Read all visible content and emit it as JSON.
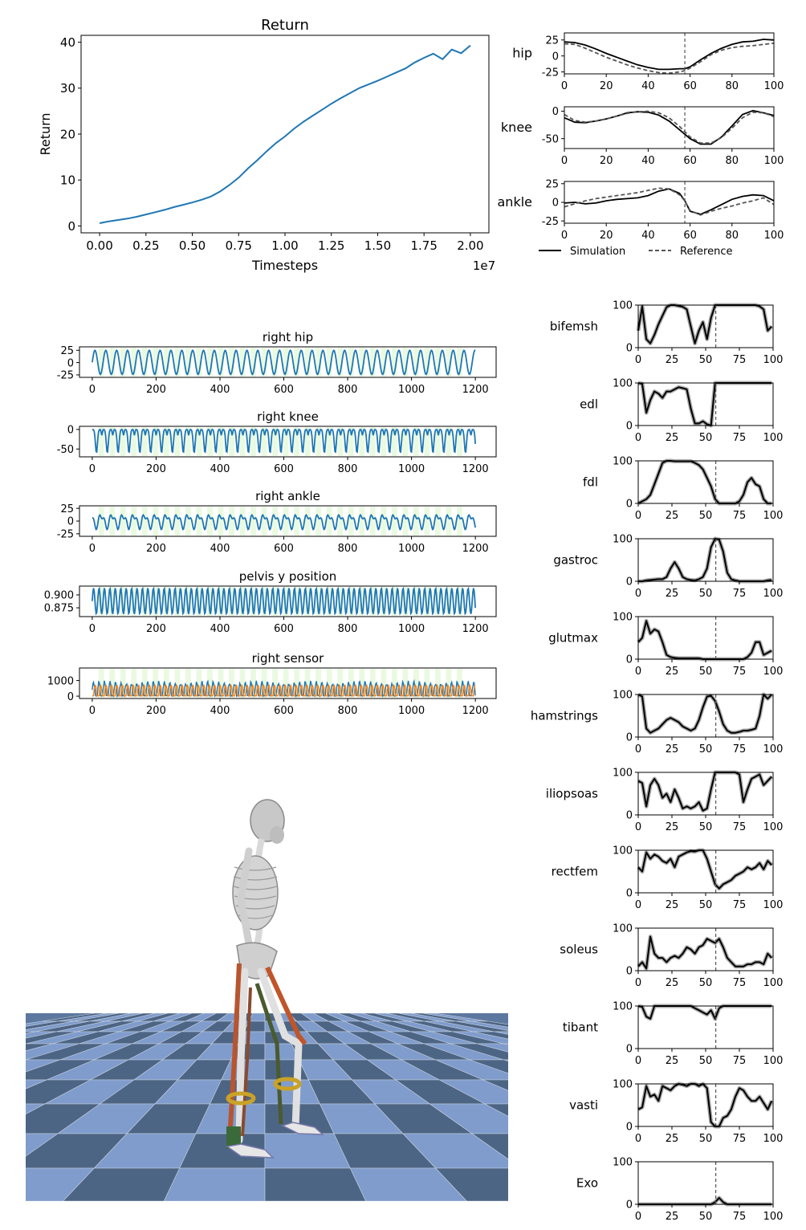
{
  "colors": {
    "blue": "#1f77b4",
    "orange": "#ff7f0e",
    "black": "#000000",
    "ref": "#555555",
    "band": "#aaaaaa",
    "stance": "#d7f5c8",
    "floor_dark": "#4d6585",
    "floor_light": "#7f9ccc",
    "floor_line": "#c9d1dc"
  },
  "chart_data": [
    {
      "id": "return",
      "type": "line",
      "title": "Return",
      "xlabel": "Timesteps",
      "ylabel": "Return",
      "x_multiplier_label": "1e7",
      "xlim": [
        -0.1,
        2.1
      ],
      "ylim": [
        -1.5,
        41.5
      ],
      "xticks": [
        0.0,
        0.25,
        0.5,
        0.75,
        1.0,
        1.25,
        1.5,
        1.75,
        2.0
      ],
      "xtick_labels": [
        "0.00",
        "0.25",
        "0.50",
        "0.75",
        "1.00",
        "1.25",
        "1.50",
        "1.75",
        "2.00"
      ],
      "yticks": [
        0,
        10,
        20,
        30,
        40
      ],
      "series": [
        {
          "color": "#1f77b4",
          "x": [
            0.0,
            0.05,
            0.1,
            0.15,
            0.2,
            0.25,
            0.3,
            0.35,
            0.4,
            0.45,
            0.5,
            0.55,
            0.6,
            0.65,
            0.7,
            0.75,
            0.8,
            0.85,
            0.9,
            0.95,
            1.0,
            1.05,
            1.1,
            1.15,
            1.2,
            1.25,
            1.3,
            1.35,
            1.4,
            1.45,
            1.5,
            1.55,
            1.6,
            1.65,
            1.7,
            1.75,
            1.8,
            1.85,
            1.9,
            1.95,
            2.0
          ],
          "y": [
            0.6,
            1.0,
            1.3,
            1.6,
            2.0,
            2.5,
            3.0,
            3.5,
            4.1,
            4.6,
            5.1,
            5.7,
            6.4,
            7.5,
            8.9,
            10.5,
            12.5,
            14.3,
            16.2,
            18.0,
            19.5,
            21.2,
            22.7,
            24.0,
            25.3,
            26.6,
            27.8,
            28.9,
            30.0,
            30.8,
            31.6,
            32.5,
            33.4,
            34.3,
            35.6,
            36.6,
            37.5,
            36.3,
            38.4,
            37.6,
            39.3
          ]
        }
      ]
    },
    {
      "id": "hip",
      "type": "line",
      "ylabel": "hip",
      "xlim": [
        0,
        100
      ],
      "ylim": [
        -28,
        36
      ],
      "xticks": [
        0,
        20,
        40,
        60,
        80,
        100
      ],
      "yticks": [
        -25,
        0,
        25
      ],
      "vline_x": 57.5,
      "series": [
        {
          "name": "Simulation",
          "style": "solid",
          "x": [
            0,
            5,
            10,
            15,
            20,
            25,
            30,
            35,
            40,
            45,
            50,
            55,
            57.5,
            60,
            65,
            70,
            75,
            80,
            85,
            90,
            95,
            100
          ],
          "y": [
            22,
            21,
            17,
            11,
            4,
            -2,
            -8,
            -14,
            -18,
            -21,
            -21,
            -20,
            -20,
            -17,
            -6,
            4,
            12,
            18,
            22,
            23,
            26,
            25
          ]
        },
        {
          "name": "Reference",
          "style": "dashed",
          "x": [
            0,
            5,
            10,
            15,
            20,
            25,
            30,
            35,
            40,
            45,
            50,
            55,
            57.5,
            60,
            65,
            70,
            75,
            80,
            85,
            90,
            95,
            100
          ],
          "y": [
            19,
            18,
            12,
            5,
            -2,
            -8,
            -14,
            -19,
            -23,
            -26,
            -27,
            -25,
            -23,
            -19,
            -9,
            2,
            9,
            13,
            15,
            16,
            18,
            20
          ]
        }
      ]
    },
    {
      "id": "knee",
      "type": "line",
      "ylabel": "knee",
      "xlim": [
        0,
        100
      ],
      "ylim": [
        -68,
        8
      ],
      "xticks": [
        0,
        20,
        40,
        60,
        80,
        100
      ],
      "yticks": [
        -50,
        0
      ],
      "vline_x": 57.5,
      "series": [
        {
          "name": "Simulation",
          "style": "solid",
          "x": [
            0,
            5,
            10,
            15,
            20,
            25,
            30,
            35,
            40,
            45,
            50,
            55,
            60,
            65,
            70,
            75,
            80,
            85,
            90,
            95,
            100
          ],
          "y": [
            -12,
            -20,
            -21,
            -18,
            -14,
            -9,
            -3,
            -1,
            -2,
            -7,
            -18,
            -34,
            -50,
            -60,
            -60,
            -47,
            -27,
            -6,
            1,
            -3,
            -8
          ]
        },
        {
          "name": "Reference",
          "style": "dashed",
          "x": [
            0,
            5,
            10,
            15,
            20,
            25,
            30,
            35,
            40,
            45,
            50,
            55,
            60,
            65,
            70,
            75,
            80,
            85,
            90,
            95,
            100
          ],
          "y": [
            -6,
            -17,
            -20,
            -18,
            -14,
            -9,
            -4,
            -1,
            0,
            -3,
            -12,
            -28,
            -47,
            -58,
            -58,
            -48,
            -31,
            -12,
            -2,
            -3,
            -10
          ]
        }
      ]
    },
    {
      "id": "ankle",
      "type": "line",
      "ylabel": "ankle",
      "xlim": [
        0,
        100
      ],
      "ylim": [
        -28,
        28
      ],
      "xticks": [
        0,
        20,
        40,
        60,
        80,
        100
      ],
      "yticks": [
        -25,
        0,
        25
      ],
      "vline_x": 57.5,
      "series": [
        {
          "name": "Simulation",
          "style": "solid",
          "x": [
            0,
            5,
            10,
            15,
            20,
            25,
            30,
            35,
            40,
            45,
            50,
            55,
            57.5,
            60,
            65,
            70,
            75,
            80,
            85,
            90,
            95,
            100
          ],
          "y": [
            -1,
            0,
            -2,
            -1,
            2,
            4,
            5,
            6,
            9,
            15,
            18,
            12,
            2,
            -12,
            -16,
            -10,
            -3,
            4,
            8,
            10,
            9,
            2
          ]
        },
        {
          "name": "Reference",
          "style": "dashed",
          "x": [
            0,
            5,
            10,
            15,
            20,
            25,
            30,
            35,
            40,
            45,
            50,
            55,
            57.5,
            60,
            65,
            70,
            75,
            80,
            85,
            90,
            95,
            100
          ],
          "y": [
            -6,
            -2,
            2,
            5,
            7,
            9,
            11,
            13,
            16,
            19,
            18,
            10,
            2,
            -11,
            -17,
            -12,
            -8,
            -5,
            -1,
            2,
            6,
            -3
          ]
        }
      ]
    },
    {
      "id": "right_hip",
      "type": "line",
      "title": "right hip",
      "xlim": [
        -40,
        1265
      ],
      "ylim": [
        -30,
        32
      ],
      "xticks": [
        0,
        200,
        400,
        600,
        800,
        1000,
        1200
      ],
      "yticks": [
        -25,
        0,
        25
      ],
      "wave": {
        "color": "#1f77b4",
        "period": 34,
        "phase": 0,
        "min": -24,
        "max": 25,
        "shape": "sine",
        "start": 0,
        "end": 1200
      },
      "stance_bands": true
    },
    {
      "id": "right_knee",
      "type": "line",
      "title": "right knee",
      "xlim": [
        -40,
        1265
      ],
      "ylim": [
        -70,
        8
      ],
      "xticks": [
        0,
        200,
        400,
        600,
        800,
        1000,
        1200
      ],
      "yticks": [
        -50,
        0
      ],
      "wave": {
        "color": "#1f77b4",
        "period": 34,
        "phase": 8,
        "min": -60,
        "max": 0,
        "shape": "knee",
        "start": 0,
        "end": 1200
      },
      "stance_bands": true
    },
    {
      "id": "right_ankle",
      "type": "line",
      "title": "right ankle",
      "xlim": [
        -40,
        1265
      ],
      "ylim": [
        -30,
        30
      ],
      "xticks": [
        0,
        200,
        400,
        600,
        800,
        1000,
        1200
      ],
      "yticks": [
        -25,
        0,
        25
      ],
      "wave": {
        "color": "#1f77b4",
        "period": 34,
        "phase": 14,
        "min": -17,
        "max": 18,
        "shape": "ankle",
        "start": 0,
        "end": 1200
      },
      "stance_bands": true
    },
    {
      "id": "pelvis_y",
      "type": "line",
      "title": "pelvis y position",
      "xlim": [
        -40,
        1265
      ],
      "ylim": [
        0.858,
        0.917
      ],
      "xticks": [
        0,
        200,
        400,
        600,
        800,
        1000,
        1200
      ],
      "yticks": [
        0.875,
        0.9
      ],
      "ytick_labels": [
        "0.875",
        "0.900"
      ],
      "wave": {
        "color": "#1f77b4",
        "period": 17,
        "phase": 0,
        "min": 0.863,
        "max": 0.913,
        "shape": "sine",
        "start": 0,
        "end": 1200
      },
      "stance_bands": true
    },
    {
      "id": "right_sensor",
      "type": "line",
      "title": "right sensor",
      "xlim": [
        -40,
        1265
      ],
      "ylim": [
        -150,
        1800
      ],
      "xticks": [
        0,
        200,
        400,
        600,
        800,
        1000,
        1200
      ],
      "yticks": [
        0,
        1000
      ],
      "sensor": true,
      "stance_bands": true
    }
  ],
  "muscles": {
    "xlim": [
      0,
      100
    ],
    "ylim": [
      0,
      100
    ],
    "xticks": [
      0,
      25,
      50,
      75,
      100
    ],
    "yticks": [
      0,
      100
    ],
    "vline_x": 57.5,
    "x": [
      0,
      3,
      6,
      9,
      12,
      15,
      18,
      21,
      24,
      27,
      30,
      33,
      36,
      39,
      42,
      45,
      48,
      51,
      54,
      57,
      60,
      63,
      66,
      69,
      72,
      75,
      78,
      81,
      84,
      87,
      90,
      93,
      96,
      99
    ],
    "items": [
      {
        "label": "bifemsh",
        "y": [
          40,
          97,
          20,
          10,
          30,
          55,
          75,
          95,
          100,
          100,
          98,
          96,
          90,
          50,
          10,
          40,
          60,
          20,
          70,
          100,
          100,
          100,
          100,
          100,
          100,
          100,
          100,
          100,
          100,
          100,
          97,
          90,
          40,
          50
        ]
      },
      {
        "label": "edl",
        "y": [
          100,
          98,
          30,
          60,
          80,
          75,
          65,
          80,
          80,
          85,
          90,
          88,
          85,
          40,
          5,
          5,
          10,
          3,
          0,
          100,
          100,
          100,
          100,
          100,
          100,
          100,
          100,
          100,
          100,
          100,
          100,
          100,
          100,
          100
        ]
      },
      {
        "label": "fdl",
        "y": [
          0,
          5,
          10,
          20,
          45,
          70,
          95,
          100,
          100,
          99,
          99,
          99,
          99,
          99,
          95,
          90,
          80,
          60,
          40,
          10,
          0,
          0,
          0,
          0,
          0,
          5,
          20,
          50,
          60,
          45,
          40,
          10,
          0,
          0
        ]
      },
      {
        "label": "gastroc",
        "y": [
          0,
          0,
          2,
          3,
          4,
          5,
          5,
          10,
          30,
          45,
          30,
          10,
          5,
          3,
          2,
          5,
          10,
          30,
          80,
          100,
          98,
          70,
          20,
          5,
          2,
          0,
          0,
          0,
          0,
          0,
          0,
          0,
          2,
          3
        ]
      },
      {
        "label": "glutmax",
        "y": [
          40,
          50,
          90,
          60,
          70,
          65,
          40,
          10,
          5,
          3,
          2,
          2,
          2,
          2,
          2,
          2,
          0,
          0,
          0,
          0,
          0,
          0,
          0,
          0,
          0,
          0,
          0,
          5,
          15,
          40,
          40,
          10,
          15,
          20
        ]
      },
      {
        "label": "hamstrings",
        "y": [
          100,
          95,
          20,
          10,
          15,
          20,
          30,
          40,
          45,
          40,
          35,
          25,
          20,
          15,
          20,
          40,
          70,
          95,
          97,
          85,
          60,
          30,
          15,
          10,
          10,
          12,
          15,
          15,
          17,
          20,
          50,
          100,
          90,
          100
        ]
      },
      {
        "label": "iliopsoas",
        "y": [
          80,
          75,
          20,
          70,
          85,
          70,
          40,
          50,
          30,
          60,
          40,
          15,
          20,
          15,
          20,
          30,
          10,
          15,
          60,
          100,
          100,
          100,
          100,
          100,
          100,
          95,
          30,
          60,
          85,
          90,
          95,
          70,
          80,
          90
        ]
      },
      {
        "label": "rectfem",
        "y": [
          60,
          50,
          95,
          80,
          90,
          85,
          75,
          70,
          80,
          60,
          85,
          90,
          95,
          98,
          97,
          100,
          100,
          80,
          50,
          20,
          10,
          20,
          25,
          30,
          40,
          45,
          50,
          60,
          55,
          60,
          70,
          55,
          75,
          65
        ]
      },
      {
        "label": "soleus",
        "y": [
          10,
          20,
          5,
          80,
          40,
          30,
          30,
          20,
          30,
          35,
          30,
          40,
          55,
          50,
          40,
          55,
          60,
          75,
          70,
          65,
          75,
          55,
          30,
          20,
          10,
          10,
          10,
          15,
          15,
          20,
          20,
          15,
          40,
          30
        ]
      },
      {
        "label": "tibant",
        "y": [
          100,
          98,
          75,
          70,
          100,
          100,
          100,
          100,
          100,
          100,
          100,
          100,
          100,
          100,
          95,
          90,
          85,
          80,
          90,
          70,
          95,
          100,
          100,
          100,
          100,
          100,
          100,
          100,
          100,
          100,
          100,
          100,
          100,
          100
        ]
      },
      {
        "label": "vasti",
        "y": [
          40,
          45,
          95,
          70,
          75,
          60,
          95,
          90,
          85,
          95,
          100,
          98,
          95,
          100,
          100,
          95,
          100,
          90,
          10,
          0,
          0,
          20,
          25,
          40,
          70,
          90,
          85,
          70,
          60,
          60,
          70,
          55,
          40,
          60
        ]
      },
      {
        "label": "Exo",
        "y": [
          0,
          0,
          0,
          0,
          0,
          0,
          0,
          0,
          0,
          0,
          0,
          0,
          0,
          0,
          0,
          0,
          0,
          0,
          0,
          5,
          15,
          5,
          0,
          0,
          0,
          0,
          0,
          0,
          0,
          0,
          0,
          0,
          0,
          0
        ]
      }
    ]
  },
  "legend": {
    "simulation": "Simulation",
    "reference": "Reference"
  },
  "scene": {
    "name": "musculoskeletal-walker-render"
  }
}
